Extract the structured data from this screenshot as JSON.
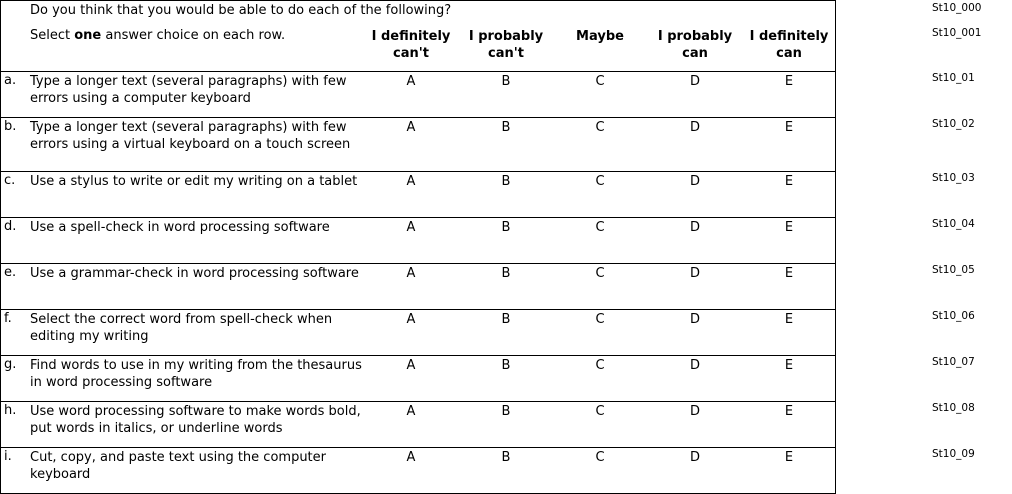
{
  "question": "Do you think that you would be able to do each of the following?",
  "instruction_pre": "Select ",
  "instruction_bold": "one",
  "instruction_post": " answer choice on each row.",
  "columns": [
    "I definitely can't",
    "I probably can't",
    "Maybe",
    "I probably can",
    "I definitely can"
  ],
  "header_codes": [
    "St10_000",
    "St10_001"
  ],
  "rows": [
    {
      "letter": "a.",
      "text": "Type a longer text (several paragraphs) with few errors using a computer keyboard",
      "code": "St10_01"
    },
    {
      "letter": "b.",
      "text": "Type a longer text (several paragraphs) with few errors using a virtual keyboard on a touch screen",
      "code": "St10_02"
    },
    {
      "letter": "c.",
      "text": "Use a stylus to write or edit my writing on a tablet",
      "code": "St10_03"
    },
    {
      "letter": "d.",
      "text": "Use a spell-check in word processing software",
      "code": "St10_04"
    },
    {
      "letter": "e.",
      "text": "Use a grammar-check in word processing software",
      "code": "St10_05"
    },
    {
      "letter": "f.",
      "text": "Select the correct word from spell-check when editing my writing",
      "code": "St10_06"
    },
    {
      "letter": "g.",
      "text": "Find words to use in my writing from the thesaurus in word processing software",
      "code": "St10_07"
    },
    {
      "letter": "h.",
      "text": "Use word processing software to make words bold, put words in italics, or underline words",
      "code": "St10_08"
    },
    {
      "letter": "i.",
      "text": "Cut, copy, and paste text using the computer keyboard",
      "code": "St10_09"
    }
  ],
  "options": [
    "A",
    "B",
    "C",
    "D",
    "E"
  ]
}
